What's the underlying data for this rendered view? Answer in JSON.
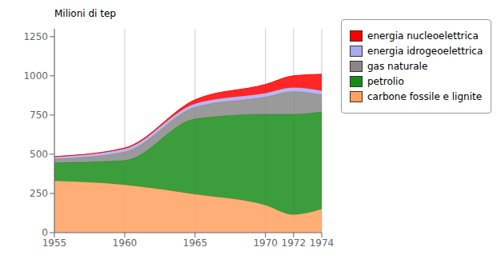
{
  "chart_data": {
    "type": "area",
    "stacked": true,
    "x": [
      1955,
      1960,
      1965,
      1970,
      1972,
      1974
    ],
    "xlim": [
      1955,
      1974
    ],
    "xticks": [
      1955,
      1960,
      1965,
      1970,
      1972,
      1974
    ],
    "ylim": [
      0,
      1300
    ],
    "yticks": [
      0,
      250,
      500,
      750,
      1000,
      1250
    ],
    "ylabel": "Milioni di tep",
    "grid": true,
    "legend": "right",
    "series": [
      {
        "name": "carbone fossile e lignite",
        "color": "#FFA060",
        "values": [
          330,
          305,
          245,
          175,
          115,
          150
        ]
      },
      {
        "name": "petrolio",
        "color": "#1A8C1A",
        "values": [
          115,
          155,
          480,
          580,
          640,
          620
        ]
      },
      {
        "name": "gas naturale",
        "color": "#888888",
        "values": [
          25,
          55,
          75,
          110,
          145,
          110
        ]
      },
      {
        "name": "energia idrogeoelettrica",
        "color": "#AAAAEE",
        "values": [
          15,
          20,
          22,
          25,
          25,
          25
        ]
      },
      {
        "name": "energia nucleoelettrica",
        "color": "#FF0000",
        "values": [
          0,
          5,
          25,
          55,
          75,
          105
        ]
      }
    ]
  }
}
